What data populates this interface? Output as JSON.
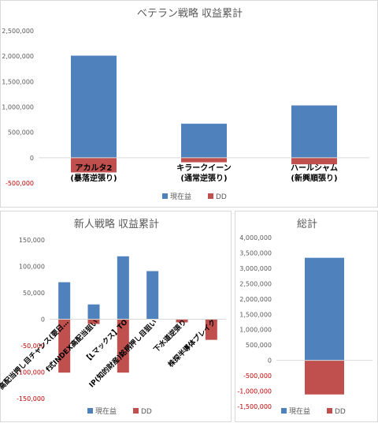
{
  "chart_data": [
    {
      "type": "bar",
      "stacked": true,
      "title": "ベテラン戦略 収益累計",
      "categories": [
        [
          "アカルタ2",
          "(暴落逆張り)"
        ],
        [
          "キラークイーン",
          "(通常逆張り)"
        ],
        [
          "ハールシャム",
          "(新興順張り)"
        ]
      ],
      "series": [
        {
          "name": "現在益",
          "color": "#4f81bd",
          "values": [
            2010000,
            670000,
            1030000
          ]
        },
        {
          "name": "DD",
          "color": "#c0504d",
          "values": [
            -290000,
            -90000,
            -130000
          ]
        }
      ],
      "ylim": [
        -500000,
        2500000
      ],
      "yticks": [
        "-500,000",
        "0",
        "500,000",
        "1,000,000",
        "1,500,000",
        "2,000,000",
        "2,500,000"
      ],
      "ytick_values": [
        -500000,
        0,
        500000,
        1000000,
        1500000,
        2000000,
        2500000
      ],
      "grid": false,
      "legend": "bottom"
    },
    {
      "type": "bar",
      "stacked": true,
      "title": "新人戦略 収益累計",
      "categories": [
        "高配当押し目チャンス(要日…",
        "f式INDEX高配当狙い",
        "【Lマックス】TO",
        "IP(知的財産)銘柄押し目狙い",
        "下水道逆張り",
        "株探半導体ブレイク"
      ],
      "series": [
        {
          "name": "現在益",
          "color": "#4f81bd",
          "values": [
            70000,
            28000,
            119000,
            91000,
            0,
            0
          ]
        },
        {
          "name": "DD",
          "color": "#c0504d",
          "values": [
            -101000,
            -9000,
            -101000,
            0,
            -6000,
            -39000
          ]
        }
      ],
      "ylim": [
        -150000,
        150000
      ],
      "yticks": [
        "-150,000",
        "-100,000",
        "-50,000",
        "0",
        "50,000",
        "100,000",
        "150,000"
      ],
      "ytick_values": [
        -150000,
        -100000,
        -50000,
        0,
        50000,
        100000,
        150000
      ],
      "grid": false,
      "legend": "bottom"
    },
    {
      "type": "bar",
      "stacked": true,
      "title": "総計",
      "categories": [
        ""
      ],
      "series": [
        {
          "name": "現在益",
          "color": "#4f81bd",
          "values": [
            3340000
          ]
        },
        {
          "name": "DD",
          "color": "#c0504d",
          "values": [
            -1110000
          ]
        }
      ],
      "ylim": [
        -1500000,
        4000000
      ],
      "yticks": [
        "-1,500,000",
        "-1,000,000",
        "-500,000",
        "0",
        "500,000",
        "1,000,000",
        "1,500,000",
        "2,000,000",
        "2,500,000",
        "3,000,000",
        "3,500,000",
        "4,000,000"
      ],
      "ytick_values": [
        -1500000,
        -1000000,
        -500000,
        0,
        500000,
        1000000,
        1500000,
        2000000,
        2500000,
        3000000,
        3500000,
        4000000
      ],
      "grid": false,
      "legend": "bottom"
    }
  ]
}
